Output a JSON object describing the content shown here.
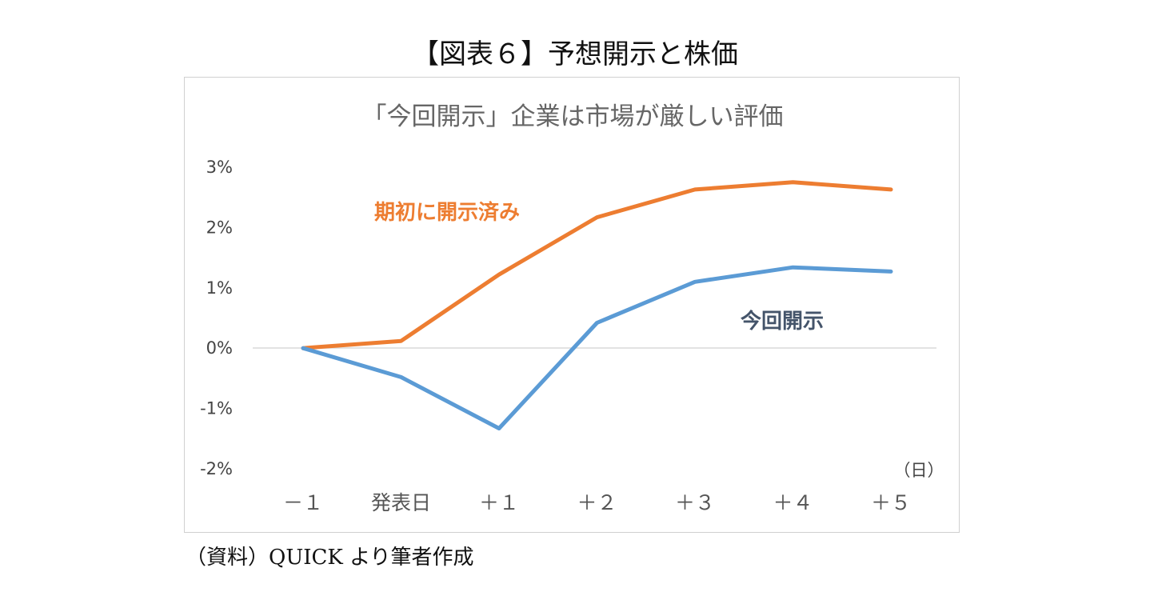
{
  "figure_title": "【図表６】予想開示と株価",
  "source_note": "（資料）QUICK より筆者作成",
  "chart_data": {
    "type": "line",
    "title": "「今回開示」企業は市場が厳しい評価",
    "xunit": "（日）",
    "categories": [
      "－１",
      "発表日",
      "＋１",
      "＋２",
      "＋３",
      "＋４",
      "＋５"
    ],
    "yticks": [
      "3%",
      "2%",
      "1%",
      "0%",
      "-1%",
      "-2%"
    ],
    "ylim": [
      -2,
      3
    ],
    "grid": false,
    "series": [
      {
        "name": "期初に開示済み",
        "color": "#ED7D31",
        "values": [
          0,
          0.12,
          1.22,
          2.17,
          2.63,
          2.75,
          2.63
        ]
      },
      {
        "name": "今回開示",
        "color": "#5B9BD5",
        "label_color": "#44546A",
        "values": [
          0,
          -0.48,
          -1.33,
          0.42,
          1.1,
          1.34,
          1.27
        ]
      }
    ]
  }
}
